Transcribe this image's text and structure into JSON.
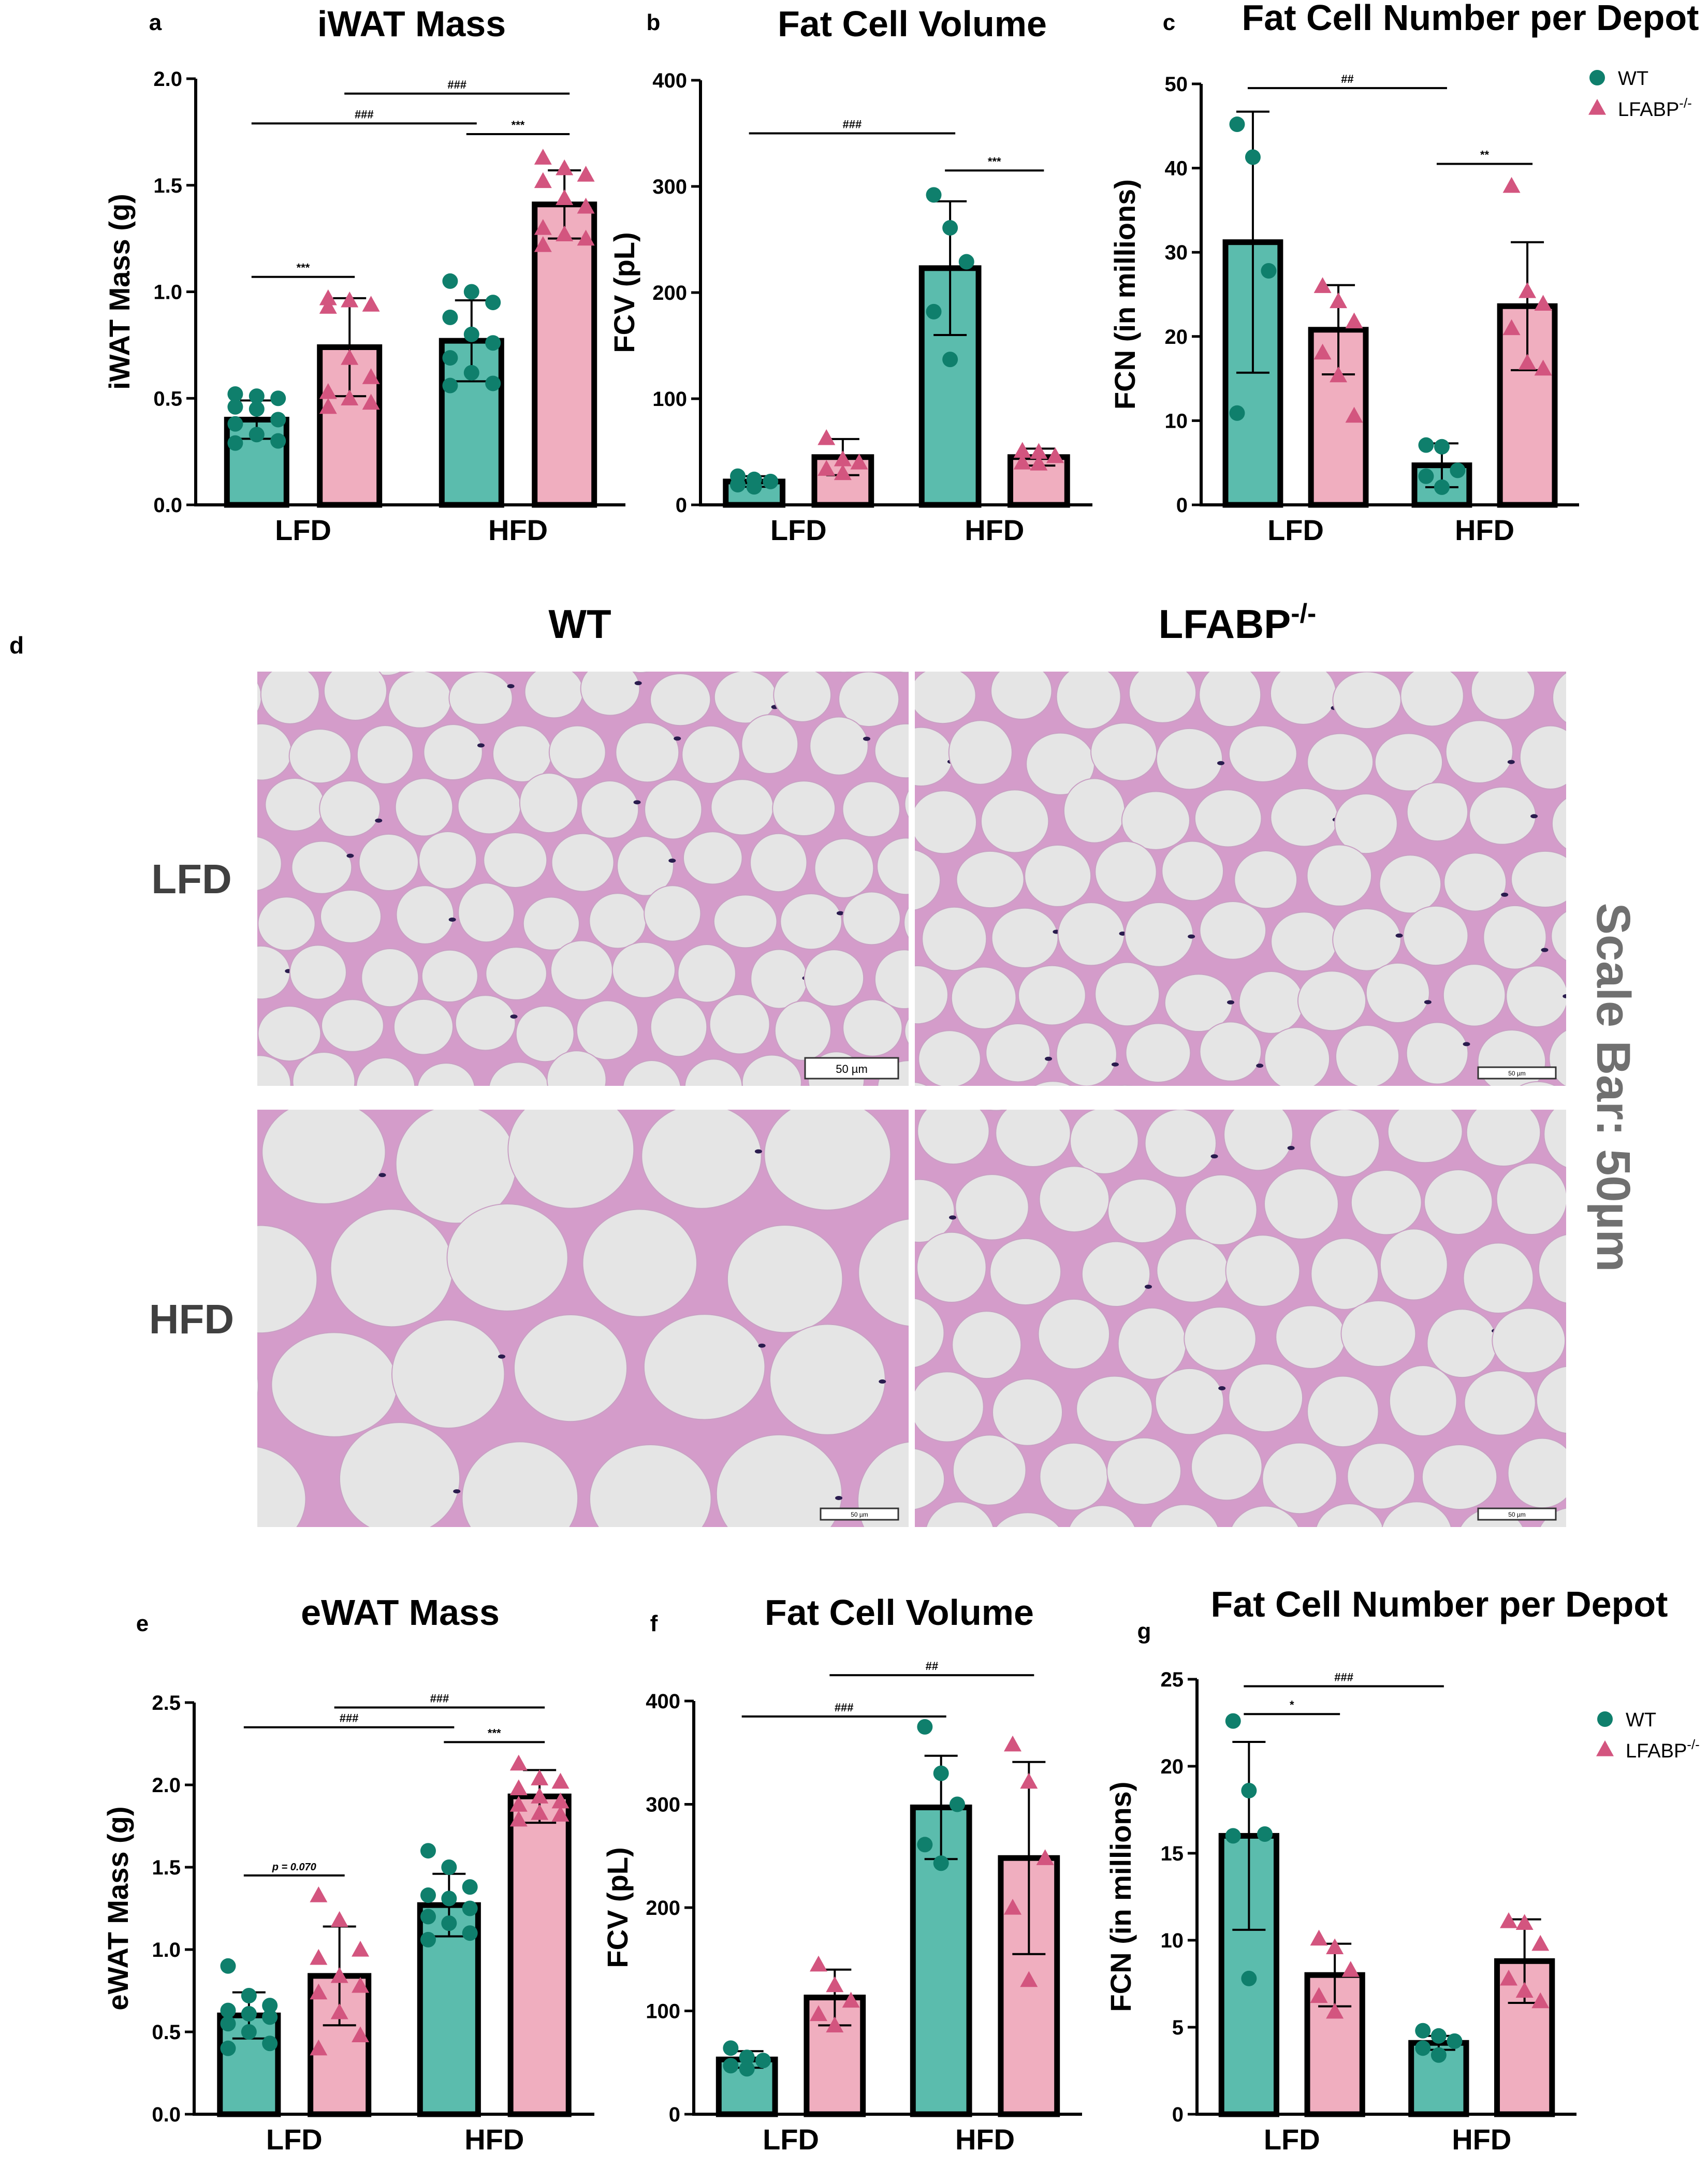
{
  "figure": {
    "colors": {
      "wt": "#5bbcad",
      "wt_marker": "#0f7f6c",
      "ko": "#f0aebf",
      "ko_marker": "#d3557f",
      "axis": "#000000",
      "text": "#000000"
    },
    "legend": {
      "wt": "WT",
      "ko": "LFABP",
      "ko_sup": "-/-"
    },
    "histology": {
      "panel_letter": "d",
      "col_titles": {
        "wt": "WT",
        "ko": "LFABP",
        "ko_sup": "-/-"
      },
      "row_titles": [
        "LFD",
        "HFD"
      ],
      "scale_text": "Scale Bar: 50µm",
      "inset_label": "50 µm",
      "colors": {
        "bg": "#d8d8d8",
        "lumen": "#e5e5e5",
        "membrane": "#b04a9e",
        "nucleus": "#2a1c4e"
      }
    }
  },
  "chart_data": [
    {
      "id": "a",
      "type": "bar",
      "panel_letter": "a",
      "title": "iWAT Mass",
      "ylabel": "iWAT Mass (g)",
      "ylim": [
        0,
        2.0
      ],
      "yticks": [
        "0.0",
        "0.5",
        "1.0",
        "1.5",
        "2.0"
      ],
      "categories": [
        "LFD",
        "HFD"
      ],
      "series": [
        {
          "name": "WT",
          "values": [
            0.4,
            0.77
          ],
          "sd": [
            0.09,
            0.19
          ],
          "points": [
            [
              0.52,
              0.51,
              0.5,
              0.46,
              0.45,
              0.4,
              0.38,
              0.33,
              0.3,
              0.29
            ],
            [
              1.05,
              1.0,
              0.95,
              0.88,
              0.8,
              0.76,
              0.69,
              0.62,
              0.57,
              0.56
            ]
          ]
        },
        {
          "name": "LFABP-/-",
          "values": [
            0.74,
            1.41
          ],
          "sd": [
            0.23,
            0.16
          ],
          "points": [
            [
              0.97,
              0.96,
              0.94,
              0.93,
              0.69,
              0.6,
              0.53,
              0.5,
              0.48,
              0.46
            ],
            [
              1.63,
              1.58,
              1.55,
              1.52,
              1.44,
              1.4,
              1.3,
              1.27,
              1.25,
              1.22
            ]
          ]
        }
      ],
      "brackets": [
        {
          "from": [
            0,
            0
          ],
          "to": [
            0,
            1
          ],
          "y": 1.07,
          "text": "***"
        },
        {
          "from": [
            1,
            0
          ],
          "to": [
            1,
            1
          ],
          "y": 1.74,
          "text": "***"
        },
        {
          "from": [
            0,
            0
          ],
          "to": [
            1,
            0
          ],
          "y": 1.79,
          "text": "###"
        },
        {
          "from": [
            0,
            1
          ],
          "to": [
            1,
            1
          ],
          "y": 1.93,
          "text": "###"
        }
      ],
      "legend": false
    },
    {
      "id": "b",
      "type": "bar",
      "panel_letter": "b",
      "title": "Fat Cell Volume",
      "ylabel": "FCV (pL)",
      "ylim": [
        0,
        400
      ],
      "yticks": [
        "0",
        "100",
        "200",
        "300",
        "400"
      ],
      "categories": [
        "LFD",
        "HFD"
      ],
      "series": [
        {
          "name": "WT",
          "values": [
            22,
            223
          ],
          "sd": [
            5,
            63
          ],
          "points": [
            [
              27,
              24,
              22,
              19,
              17
            ],
            [
              292,
              261,
              229,
              182,
              137
            ]
          ]
        },
        {
          "name": "LFABP-/-",
          "values": [
            45,
            45
          ],
          "sd": [
            17,
            8
          ],
          "points": [
            [
              63,
              43,
              40,
              34,
              30
            ],
            [
              51,
              50,
              46,
              40,
              39
            ]
          ]
        }
      ],
      "brackets": [
        {
          "from": [
            1,
            0
          ],
          "to": [
            1,
            1
          ],
          "y": 315,
          "text": "***"
        },
        {
          "from": [
            0,
            0
          ],
          "to": [
            1,
            0
          ],
          "y": 350,
          "text": "###"
        }
      ],
      "legend": false
    },
    {
      "id": "c",
      "type": "bar",
      "panel_letter": "c",
      "title": "Fat Cell Number per Depot",
      "ylabel": "FCN (in millions)",
      "ylim": [
        0,
        50
      ],
      "yticks": [
        "0",
        "10",
        "20",
        "30",
        "40",
        "50"
      ],
      "categories": [
        "LFD",
        "HFD"
      ],
      "series": [
        {
          "name": "WT",
          "values": [
            31.2,
            4.7
          ],
          "sd": [
            15.5,
            2.6
          ],
          "points": [
            [
              45.2,
              41.3,
              27.8,
              10.9
            ],
            [
              7.1,
              6.9,
              4.1,
              3.4,
              2.1
            ]
          ]
        },
        {
          "name": "LFABP-/-",
          "values": [
            20.8,
            23.6
          ],
          "sd": [
            5.3,
            7.6
          ],
          "points": [
            [
              26.0,
              24.2,
              21.8,
              18.1,
              15.4,
              10.6
            ],
            [
              37.9,
              25.4,
              23.9,
              21.0,
              16.9,
              16.2
            ]
          ]
        }
      ],
      "brackets": [
        {
          "from": [
            1,
            0
          ],
          "to": [
            1,
            1
          ],
          "y": 40.5,
          "text": "**"
        },
        {
          "from": [
            0,
            0
          ],
          "to": [
            1,
            0
          ],
          "y": 49.5,
          "text": "##"
        }
      ],
      "legend": true
    },
    {
      "id": "e",
      "type": "bar",
      "panel_letter": "e",
      "title": "eWAT Mass",
      "ylabel": "eWAT Mass (g)",
      "ylim": [
        0,
        2.5
      ],
      "yticks": [
        "0.0",
        "0.5",
        "1.0",
        "1.5",
        "2.0",
        "2.5"
      ],
      "categories": [
        "LFD",
        "HFD"
      ],
      "series": [
        {
          "name": "WT",
          "values": [
            0.6,
            1.27
          ],
          "sd": [
            0.14,
            0.19
          ],
          "points": [
            [
              0.9,
              0.72,
              0.66,
              0.63,
              0.61,
              0.59,
              0.55,
              0.5,
              0.43,
              0.4
            ],
            [
              1.6,
              1.5,
              1.38,
              1.33,
              1.31,
              1.25,
              1.2,
              1.16,
              1.1,
              1.06
            ]
          ]
        },
        {
          "name": "LFABP-/-",
          "values": [
            0.84,
            1.93
          ],
          "sd": [
            0.3,
            0.16
          ],
          "points": [
            [
              1.33,
              1.18,
              1.0,
              0.95,
              0.84,
              0.78,
              0.74,
              0.62,
              0.48,
              0.4
            ],
            [
              2.13,
              2.04,
              2.02,
              1.98,
              1.93,
              1.9,
              1.88,
              1.83,
              1.82,
              1.79
            ]
          ]
        }
      ],
      "brackets": [
        {
          "from": [
            0,
            0
          ],
          "to": [
            0,
            1
          ],
          "y": 1.45,
          "text": "p = 0.070",
          "italic_p": true
        },
        {
          "from": [
            1,
            0
          ],
          "to": [
            1,
            1
          ],
          "y": 2.26,
          "text": "***"
        },
        {
          "from": [
            0,
            0
          ],
          "to": [
            1,
            0
          ],
          "y": 2.35,
          "text": "###"
        },
        {
          "from": [
            0,
            1
          ],
          "to": [
            1,
            1
          ],
          "y": 2.47,
          "text": "###"
        }
      ],
      "legend": false
    },
    {
      "id": "f",
      "type": "bar",
      "panel_letter": "f",
      "title": "Fat Cell Volume",
      "ylabel": "FCV (pL)",
      "ylim": [
        0,
        400
      ],
      "yticks": [
        "0",
        "100",
        "200",
        "300",
        "400"
      ],
      "categories": [
        "LFD",
        "HFD"
      ],
      "series": [
        {
          "name": "WT",
          "values": [
            53,
            297
          ],
          "sd": [
            8,
            50
          ],
          "points": [
            [
              64,
              55,
              52,
              47,
              44
            ],
            [
              375,
              330,
              300,
              261,
              243
            ]
          ]
        },
        {
          "name": "LFABP-/-",
          "values": [
            113,
            248
          ],
          "sd": [
            27,
            93
          ],
          "points": [
            [
              145,
              125,
              110,
              97,
              86
            ],
            [
              358,
              322,
              248,
              200,
              130
            ]
          ]
        }
      ],
      "brackets": [
        {
          "from": [
            0,
            0
          ],
          "to": [
            1,
            0
          ],
          "y": 385,
          "text": "###"
        },
        {
          "from": [
            0,
            1
          ],
          "to": [
            1,
            1
          ],
          "y": 425,
          "text": "##"
        }
      ],
      "legend": false
    },
    {
      "id": "g",
      "type": "bar",
      "panel_letter": "g",
      "title": "Fat Cell Number per Depot",
      "ylabel": "FCN (in millions)",
      "ylim": [
        0,
        25
      ],
      "yticks": [
        "0",
        "5",
        "10",
        "15",
        "20",
        "25"
      ],
      "categories": [
        "LFD",
        "HFD"
      ],
      "series": [
        {
          "name": "WT",
          "values": [
            16.0,
            4.1
          ],
          "sd": [
            5.4,
            0.4
          ],
          "points": [
            [
              22.6,
              18.6,
              16.1,
              16.0,
              7.8
            ],
            [
              4.8,
              4.5,
              4.2,
              3.8,
              3.4
            ]
          ]
        },
        {
          "name": "LFABP-/-",
          "values": [
            8.0,
            8.8
          ],
          "sd": [
            1.8,
            2.4
          ],
          "points": [
            [
              10.1,
              9.6,
              8.3,
              6.8,
              5.9
            ],
            [
              11.1,
              11.0,
              9.8,
              7.8,
              7.1,
              6.5
            ]
          ]
        }
      ],
      "brackets": [
        {
          "from": [
            0,
            0
          ],
          "to": [
            0,
            1
          ],
          "y": 23.0,
          "text": "*"
        },
        {
          "from": [
            0,
            0
          ],
          "to": [
            1,
            0
          ],
          "y": 24.6,
          "text": "###"
        }
      ],
      "legend": true
    }
  ]
}
